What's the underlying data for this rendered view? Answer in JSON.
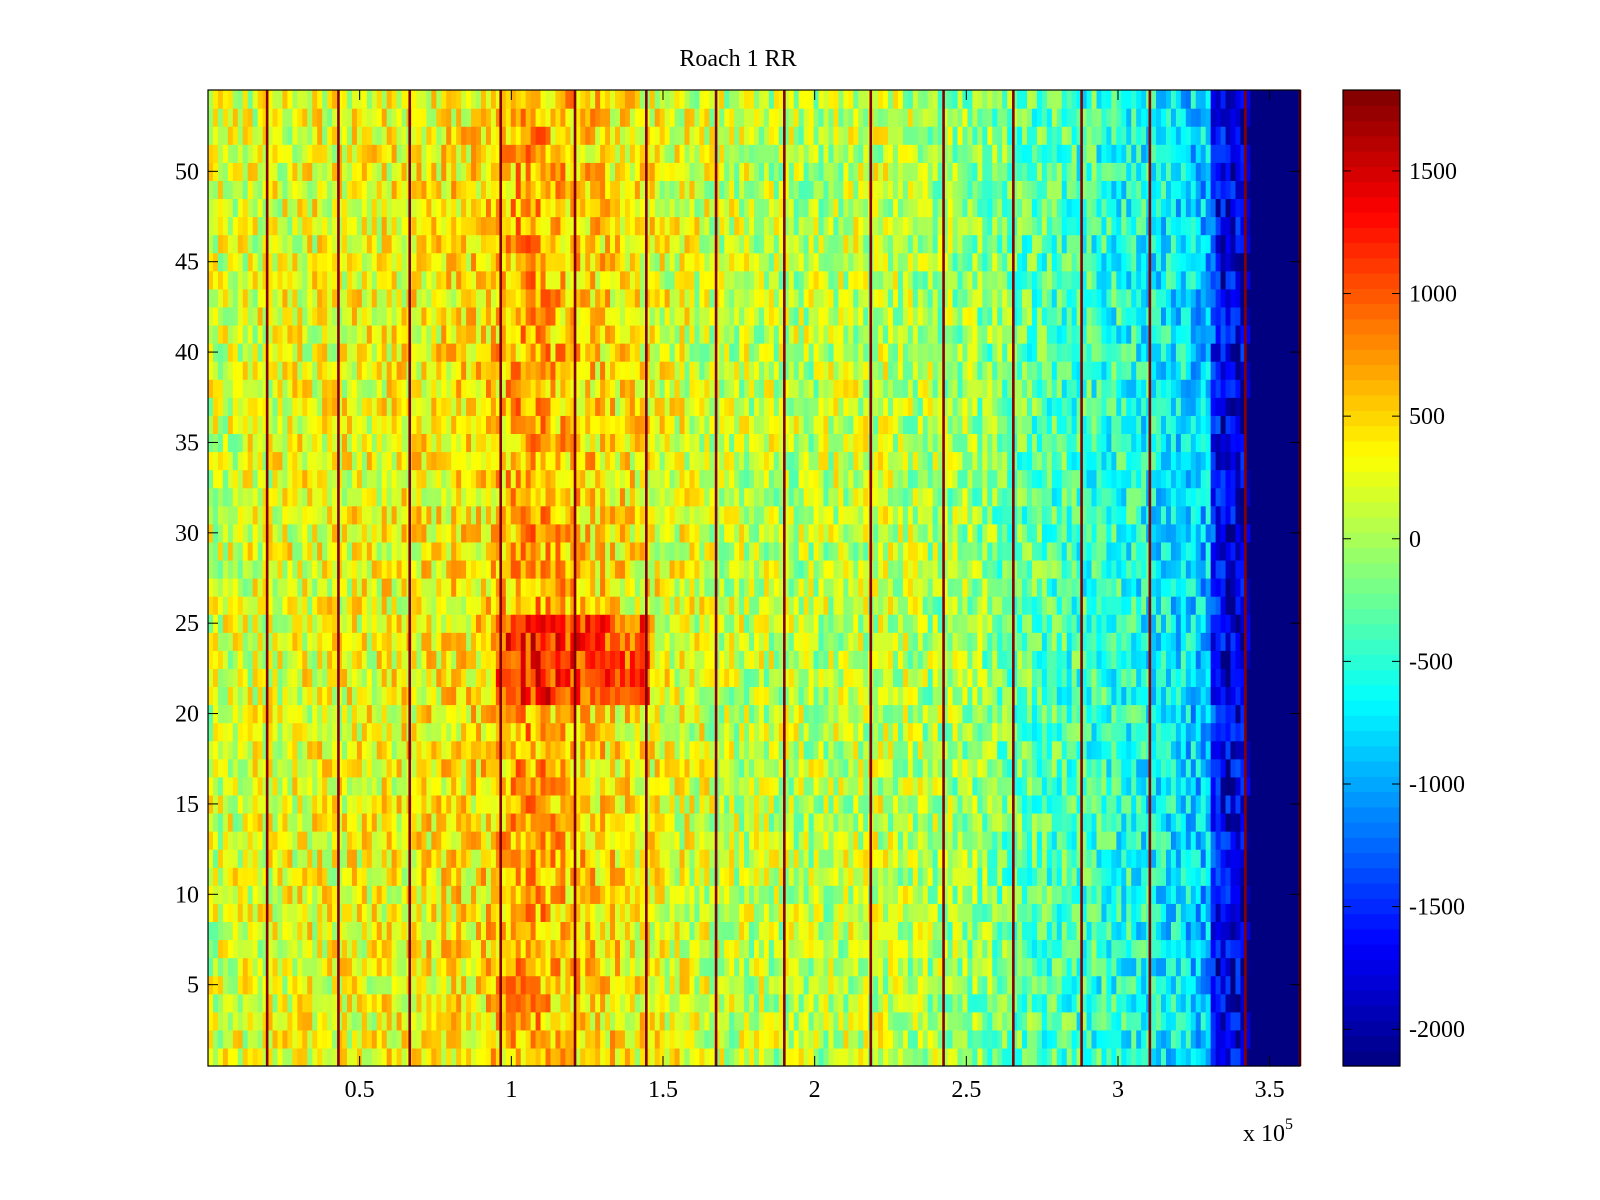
{
  "chart_data": {
    "type": "heatmap",
    "title": "Roach 1 RR",
    "xlabel": "",
    "ylabel": "",
    "x_multiplier_label": "x 10",
    "x_multiplier_exponent": "5",
    "xlim": [
      0,
      3.6
    ],
    "ylim": [
      0.5,
      54.5
    ],
    "x_ticks": [
      0.5,
      1,
      1.5,
      2,
      2.5,
      3,
      3.5
    ],
    "x_tick_labels": [
      "0.5",
      "1",
      "1.5",
      "2",
      "2.5",
      "3",
      "3.5"
    ],
    "y_ticks": [
      5,
      10,
      15,
      20,
      25,
      30,
      35,
      40,
      45,
      50
    ],
    "y_tick_labels": [
      "5",
      "10",
      "15",
      "20",
      "25",
      "30",
      "35",
      "40",
      "45",
      "50"
    ],
    "rows": 54,
    "colormap": "jet",
    "color_range": [
      -2150,
      1830
    ],
    "colorbar_ticks": [
      1500,
      1000,
      500,
      0,
      -500,
      -1000,
      -1500,
      -2000
    ],
    "colorbar_tick_labels": [
      "1500",
      "1000",
      "500",
      "0",
      "-500",
      "-1000",
      "-1500",
      "-2000"
    ],
    "column_value_profile": [
      {
        "x": 0.0,
        "value": 150
      },
      {
        "x": 0.3,
        "value": 250
      },
      {
        "x": 0.6,
        "value": 300
      },
      {
        "x": 0.9,
        "value": 420
      },
      {
        "x": 1.05,
        "value": 700
      },
      {
        "x": 1.2,
        "value": 550
      },
      {
        "x": 1.45,
        "value": 300
      },
      {
        "x": 1.7,
        "value": 120
      },
      {
        "x": 2.0,
        "value": 60
      },
      {
        "x": 2.2,
        "value": 120
      },
      {
        "x": 2.5,
        "value": -50
      },
      {
        "x": 2.7,
        "value": -300
      },
      {
        "x": 3.0,
        "value": -500
      },
      {
        "x": 3.2,
        "value": -700
      },
      {
        "x": 3.3,
        "value": -900
      },
      {
        "x": 3.32,
        "value": -1700
      },
      {
        "x": 3.42,
        "value": -1800
      },
      {
        "x": 3.43,
        "value": -2150
      },
      {
        "x": 3.6,
        "value": -2150
      }
    ],
    "hot_region": {
      "x_range": [
        0.95,
        1.45
      ],
      "y_range": [
        21,
        25
      ],
      "value": 1200
    },
    "vertical_stripe_x": [
      0.195,
      0.43,
      0.665,
      0.965,
      1.21,
      1.445,
      1.675,
      1.9,
      2.185,
      2.425,
      2.655,
      2.88,
      3.105,
      3.42,
      3.6
    ],
    "stripe_value": 1800
  }
}
